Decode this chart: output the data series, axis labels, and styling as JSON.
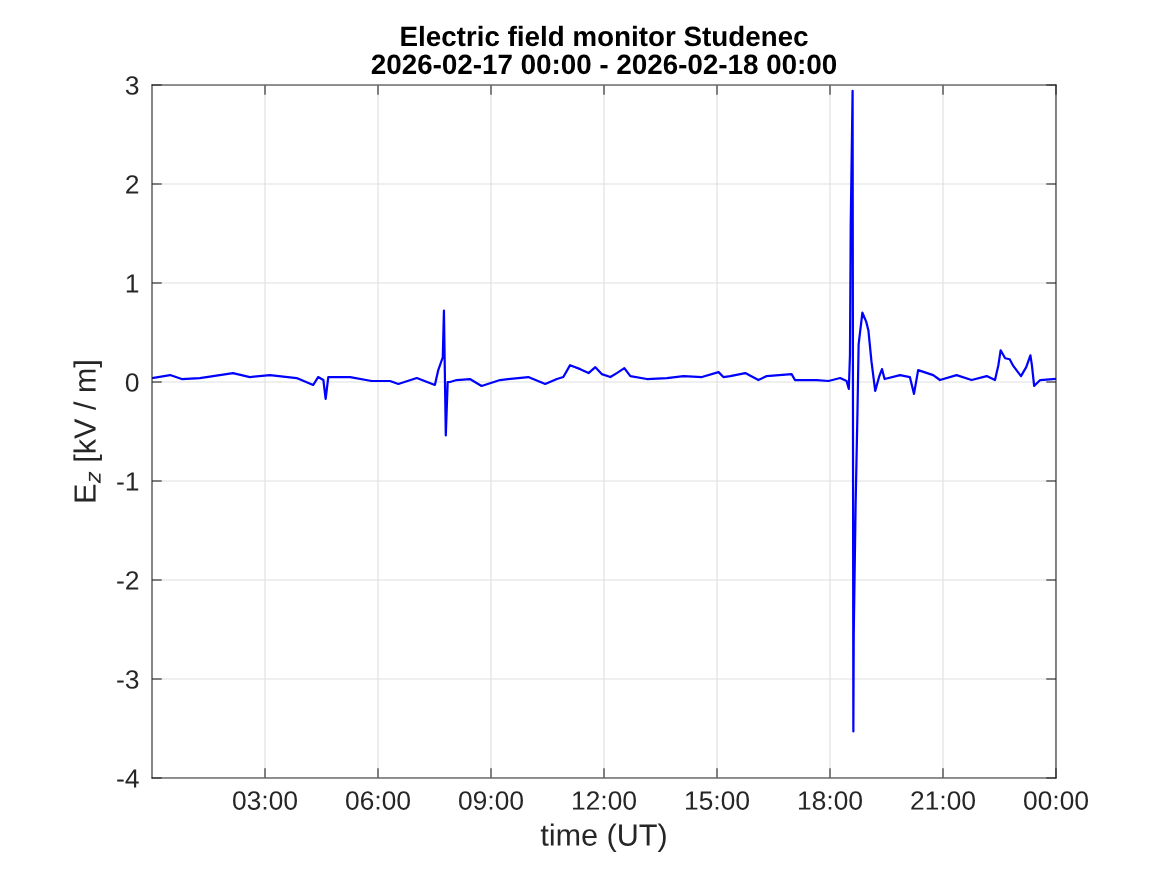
{
  "chart_data": {
    "type": "line",
    "title": "Electric field monitor Studenec\n2026-02-17 00:00 - 2026-02-18 00:00",
    "xlabel": "time (UT)",
    "ylabel": "E$_{z}$ [kV / m]",
    "xlim": [
      0,
      24
    ],
    "xticks": [
      {
        "value": 3,
        "label": "03:00"
      },
      {
        "value": 6,
        "label": "06:00"
      },
      {
        "value": 9,
        "label": "09:00"
      },
      {
        "value": 12,
        "label": "12:00"
      },
      {
        "value": 15,
        "label": "15:00"
      },
      {
        "value": 18,
        "label": "18:00"
      },
      {
        "value": 21,
        "label": "21:00"
      },
      {
        "value": 24,
        "label": "00:00"
      }
    ],
    "ylim": [
      -4,
      3
    ],
    "yticks": [
      -4,
      -3,
      -2,
      -1,
      0,
      1,
      2,
      3
    ],
    "grid": true,
    "line_style": "solid",
    "marker": "none",
    "series": [
      {
        "color": "#0000ff",
        "x": [
          0,
          0.48,
          0.79,
          1.27,
          2.15,
          2.6,
          3.13,
          3.84,
          4.28,
          4.41,
          4.55,
          4.61,
          4.68,
          5.26,
          5.83,
          6.32,
          6.54,
          7.03,
          7.51,
          7.6,
          7.72,
          7.75,
          7.8,
          7.85,
          7.91,
          8.09,
          8.44,
          8.75,
          9.24,
          9.99,
          10.44,
          10.75,
          10.92,
          11.1,
          11.37,
          11.59,
          11.77,
          11.94,
          12.17,
          12.34,
          12.54,
          12.7,
          13.14,
          13.67,
          14.11,
          14.6,
          15.04,
          15.17,
          15.35,
          15.75,
          16.1,
          16.32,
          16.98,
          17.07,
          17.65,
          17.96,
          18.27,
          18.44,
          18.5,
          18.53,
          18.55,
          18.6,
          18.62,
          18.63,
          18.68,
          18.73,
          18.76,
          18.86,
          18.96,
          19.02,
          19.1,
          19.2,
          19.31,
          19.38,
          19.45,
          19.86,
          20.12,
          20.23,
          20.34,
          20.74,
          20.92,
          21.36,
          21.76,
          22.16,
          22.38,
          22.47,
          22.53,
          22.65,
          22.77,
          22.87,
          23.07,
          23.21,
          23.32,
          23.36,
          23.42,
          23.58,
          23.98
        ],
        "values": [
          0.04,
          0.07,
          0.03,
          0.04,
          0.09,
          0.05,
          0.07,
          0.04,
          -0.03,
          0.05,
          0.02,
          -0.17,
          0.05,
          0.05,
          0.01,
          0.01,
          -0.02,
          0.04,
          -0.03,
          0.12,
          0.25,
          0.72,
          -0.54,
          0.0,
          0.0,
          0.02,
          0.03,
          -0.04,
          0.02,
          0.05,
          -0.02,
          0.03,
          0.05,
          0.17,
          0.13,
          0.09,
          0.15,
          0.08,
          0.05,
          0.09,
          0.14,
          0.06,
          0.03,
          0.04,
          0.06,
          0.05,
          0.1,
          0.05,
          0.06,
          0.09,
          0.02,
          0.06,
          0.08,
          0.02,
          0.02,
          0.01,
          0.04,
          0.01,
          -0.07,
          0.27,
          1.58,
          2.94,
          -3.53,
          -2.55,
          -1.24,
          -0.29,
          0.38,
          0.7,
          0.61,
          0.52,
          0.21,
          -0.09,
          0.06,
          0.13,
          0.03,
          0.07,
          0.05,
          -0.12,
          0.12,
          0.07,
          0.02,
          0.07,
          0.02,
          0.06,
          0.02,
          0.17,
          0.32,
          0.24,
          0.23,
          0.16,
          0.06,
          0.15,
          0.27,
          0.17,
          -0.04,
          0.02,
          0.03
        ]
      }
    ]
  }
}
